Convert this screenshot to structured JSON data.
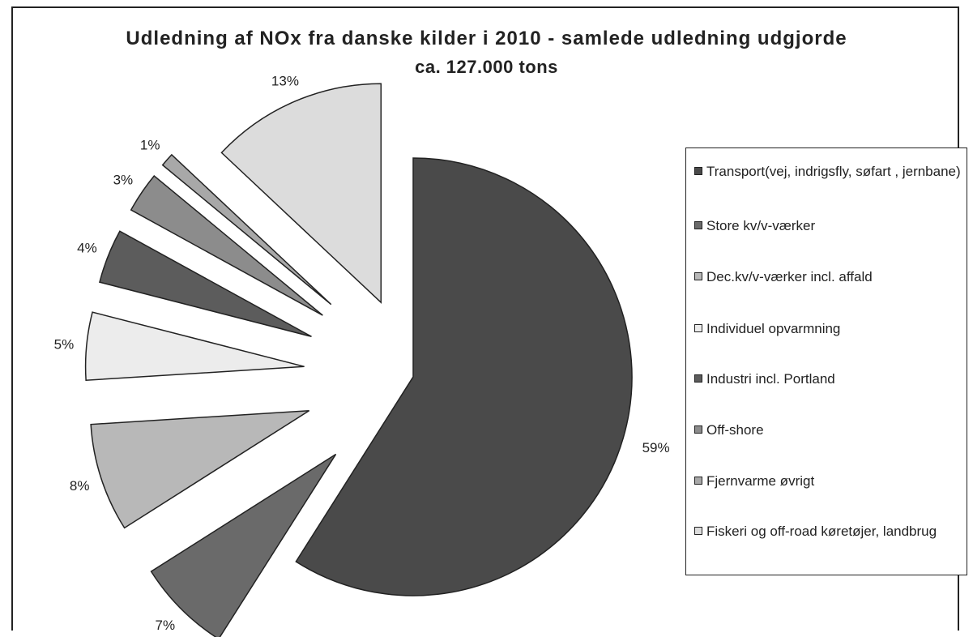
{
  "title_line1": "Udledning af NOx fra danske kilder i 2010 - samlede udledning udgjorde",
  "title_line2": "ca. 127.000 tons",
  "chart_data": {
    "type": "pie",
    "title": "Udledning af NOx fra danske kilder i 2010 - samlede udledning udgjorde ca. 127.000 tons",
    "exploded": true,
    "legend_position": "right",
    "categories": [
      "Transport(vej, indrigsfly, søfart , jernbane)",
      "Store kv/v-værker",
      "Dec.kv/v-værker incl. affald",
      "Individuel opvarmning",
      "Industri incl. Portland",
      "Off-shore",
      "Fjernvarme øvrigt",
      "Fiskeri og off-road køretøjer, landbrug"
    ],
    "values": [
      59,
      7,
      8,
      5,
      4,
      3,
      1,
      13
    ],
    "labels": [
      "59%",
      "7%",
      "8%",
      "5%",
      "4%",
      "3%",
      "1%",
      "13%"
    ],
    "colors": [
      "#4a4a4a",
      "#6a6a6a",
      "#b8b8b8",
      "#ececec",
      "#5c5c5c",
      "#8c8c8c",
      "#a8a8a8",
      "#dcdcdc"
    ]
  }
}
